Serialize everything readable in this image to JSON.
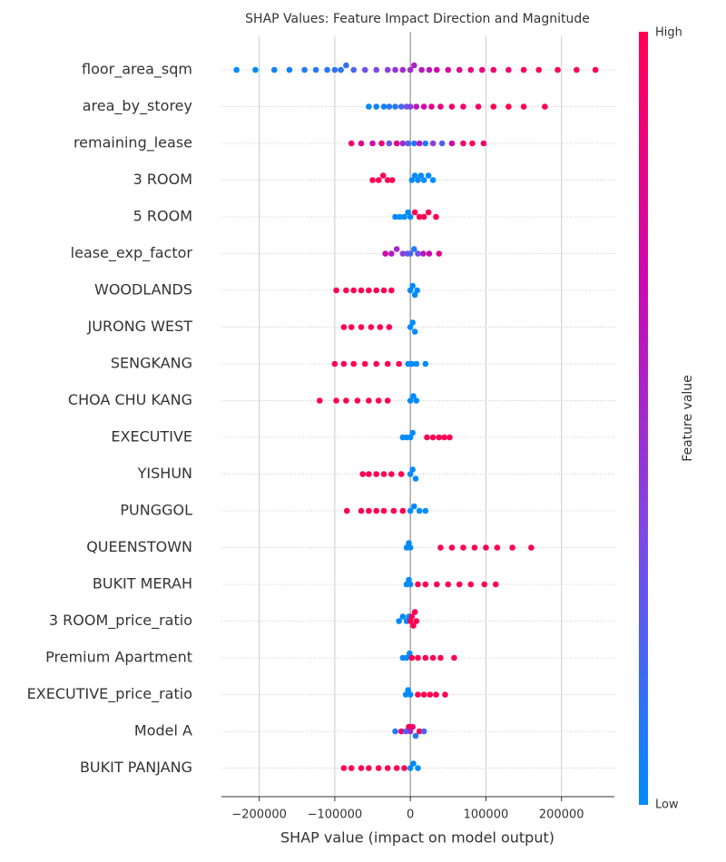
{
  "chart_data": {
    "type": "beeswarm",
    "title": "SHAP Values: Feature Impact Direction and Magnitude",
    "x_label": "SHAP value (impact on model output)",
    "colorbar_label": "Feature value",
    "colorbar_high": "High",
    "colorbar_low": "Low",
    "colormap": [
      "#008bfb",
      "#7a4be6",
      "#c80ab4",
      "#ff0052"
    ],
    "xlim": [
      -250000,
      270000
    ],
    "xticks": [
      {
        "value": -200000,
        "label": "−200000"
      },
      {
        "value": -100000,
        "label": "−100000"
      },
      0,
      100000,
      200000
    ],
    "grid": true,
    "series": [
      {
        "name": "floor_area_sqm",
        "values": [
          -230000,
          -205000,
          -180000,
          -160000,
          -140000,
          -125000,
          -110000,
          -100000,
          -92000,
          -85000,
          -75000,
          -60000,
          -45000,
          -30000,
          -20000,
          -10000,
          0,
          5000,
          15000,
          25000,
          35000,
          50000,
          65000,
          80000,
          95000,
          110000,
          130000,
          150000,
          170000,
          195000,
          220000,
          245000
        ],
        "feature_values": [
          0,
          0,
          0.05,
          0.05,
          0.1,
          0.1,
          0.1,
          0.15,
          0.1,
          0.15,
          0.2,
          0.3,
          0.35,
          0.4,
          0.45,
          0.5,
          0.5,
          0.55,
          0.6,
          0.6,
          0.7,
          0.75,
          0.8,
          0.85,
          0.85,
          0.9,
          0.9,
          0.95,
          1,
          1,
          1,
          1
        ]
      },
      {
        "name": "area_by_storey",
        "values": [
          -55000,
          -45000,
          -35000,
          -28000,
          -20000,
          -12000,
          -5000,
          0,
          8000,
          18000,
          28000,
          40000,
          55000,
          70000,
          90000,
          110000,
          130000,
          150000,
          178000
        ],
        "feature_values": [
          0,
          0.05,
          0.05,
          0.1,
          0.1,
          0.2,
          0.3,
          0.4,
          0.6,
          0.7,
          0.8,
          0.85,
          0.9,
          0.9,
          0.95,
          1,
          1,
          1,
          1
        ]
      },
      {
        "name": "remaining_lease",
        "values": [
          -78000,
          -65000,
          -50000,
          -38000,
          -28000,
          -18000,
          -10000,
          -3000,
          5000,
          12000,
          20000,
          30000,
          42000,
          55000,
          70000,
          82000,
          97000
        ],
        "feature_values": [
          0.9,
          0.8,
          0.7,
          0.9,
          0.3,
          0.8,
          0.5,
          0.2,
          0.1,
          0.6,
          0.1,
          0.4,
          0.2,
          0.7,
          0.9,
          1,
          0.9
        ]
      },
      {
        "name": "3 ROOM",
        "values": [
          -50000,
          -42000,
          -36000,
          -30000,
          -24000,
          2000,
          6000,
          10000,
          14000,
          18000,
          24000,
          30000
        ],
        "feature_values": [
          1,
          1,
          1,
          1,
          1,
          0,
          0,
          0,
          0,
          0,
          0,
          0
        ]
      },
      {
        "name": "5 ROOM",
        "values": [
          -20000,
          -14000,
          -8000,
          -3000,
          0,
          6000,
          12000,
          18000,
          24000,
          34000
        ],
        "feature_values": [
          0,
          0,
          0,
          0,
          0,
          1,
          1,
          1,
          1,
          1
        ]
      },
      {
        "name": "lease_exp_factor",
        "values": [
          -33000,
          -25000,
          -18000,
          -10000,
          -4000,
          0,
          5000,
          10000,
          17000,
          25000,
          38000
        ],
        "feature_values": [
          0.7,
          0.6,
          0.5,
          0.4,
          0.3,
          0.2,
          0.1,
          0.3,
          0.6,
          0.7,
          0.8
        ]
      },
      {
        "name": "WOODLANDS",
        "values": [
          -98000,
          -85000,
          -75000,
          -65000,
          -55000,
          -45000,
          -35000,
          -25000,
          0,
          3000,
          6000,
          9000
        ],
        "feature_values": [
          1,
          1,
          1,
          1,
          1,
          1,
          1,
          1,
          0,
          0,
          0,
          0
        ]
      },
      {
        "name": "JURONG WEST",
        "values": [
          -88000,
          -78000,
          -65000,
          -52000,
          -40000,
          -28000,
          0,
          3000,
          6000
        ],
        "feature_values": [
          1,
          1,
          1,
          1,
          1,
          1,
          0,
          0,
          0
        ]
      },
      {
        "name": "SENGKANG",
        "values": [
          -100000,
          -88000,
          -75000,
          -60000,
          -45000,
          -30000,
          -15000,
          -3000,
          2000,
          8000,
          20000
        ],
        "feature_values": [
          1,
          1,
          1,
          1,
          1,
          1,
          1,
          0,
          0,
          0,
          0
        ]
      },
      {
        "name": "CHOA CHU KANG",
        "values": [
          -120000,
          -98000,
          -85000,
          -70000,
          -55000,
          -42000,
          -30000,
          0,
          4000,
          8000
        ],
        "feature_values": [
          1,
          1,
          1,
          1,
          1,
          1,
          1,
          0,
          0,
          0
        ]
      },
      {
        "name": "EXECUTIVE",
        "values": [
          -10000,
          -5000,
          0,
          3000,
          22000,
          30000,
          38000,
          45000,
          52000
        ],
        "feature_values": [
          0,
          0,
          0,
          0,
          1,
          1,
          1,
          1,
          1
        ]
      },
      {
        "name": "YISHUN",
        "values": [
          -63000,
          -55000,
          -45000,
          -35000,
          -25000,
          -12000,
          0,
          3000,
          7000
        ],
        "feature_values": [
          1,
          1,
          1,
          1,
          1,
          1,
          0,
          0,
          0
        ]
      },
      {
        "name": "PUNGGOL",
        "values": [
          -84000,
          -65000,
          -55000,
          -45000,
          -35000,
          -22000,
          -10000,
          0,
          5000,
          12000,
          20000
        ],
        "feature_values": [
          1,
          1,
          1,
          1,
          1,
          1,
          1,
          0,
          0,
          0,
          0
        ]
      },
      {
        "name": "QUEENSTOWN",
        "values": [
          -5000,
          -2000,
          0,
          40000,
          55000,
          70000,
          85000,
          100000,
          115000,
          135000,
          160000
        ],
        "feature_values": [
          0,
          0,
          0,
          1,
          1,
          1,
          1,
          1,
          1,
          1,
          1
        ]
      },
      {
        "name": "BUKIT MERAH",
        "values": [
          -5000,
          -2000,
          0,
          10000,
          20000,
          35000,
          50000,
          65000,
          80000,
          98000,
          113000
        ],
        "feature_values": [
          0,
          0,
          0,
          1,
          1,
          1,
          1,
          1,
          1,
          1,
          1
        ]
      },
      {
        "name": "3 ROOM_price_ratio",
        "values": [
          -15000,
          -10000,
          -5000,
          -2000,
          0,
          2000,
          4000,
          6000,
          8000
        ],
        "feature_values": [
          0,
          0,
          0,
          0,
          1,
          1,
          1,
          1,
          1
        ]
      },
      {
        "name": "Premium Apartment",
        "values": [
          -10000,
          -5000,
          -1000,
          2000,
          10000,
          20000,
          30000,
          40000,
          58000
        ],
        "feature_values": [
          0,
          0,
          0,
          1,
          1,
          1,
          1,
          1,
          1
        ]
      },
      {
        "name": "EXECUTIVE_price_ratio",
        "values": [
          -6000,
          -3000,
          0,
          10000,
          18000,
          26000,
          34000,
          46000
        ],
        "feature_values": [
          0,
          0,
          0,
          1,
          1,
          1,
          1,
          1
        ]
      },
      {
        "name": "Model A",
        "values": [
          -20000,
          -12000,
          -6000,
          -2000,
          0,
          3000,
          7000,
          12000,
          18000
        ],
        "feature_values": [
          0.1,
          0.9,
          0.2,
          1,
          0.5,
          0.9,
          0.1,
          1,
          0.2
        ]
      },
      {
        "name": "BUKIT PANJANG",
        "values": [
          -88000,
          -78000,
          -65000,
          -55000,
          -42000,
          -30000,
          -18000,
          -8000,
          0,
          4000,
          10000
        ],
        "feature_values": [
          1,
          1,
          1,
          1,
          1,
          1,
          1,
          1,
          0,
          0,
          0
        ]
      }
    ]
  }
}
